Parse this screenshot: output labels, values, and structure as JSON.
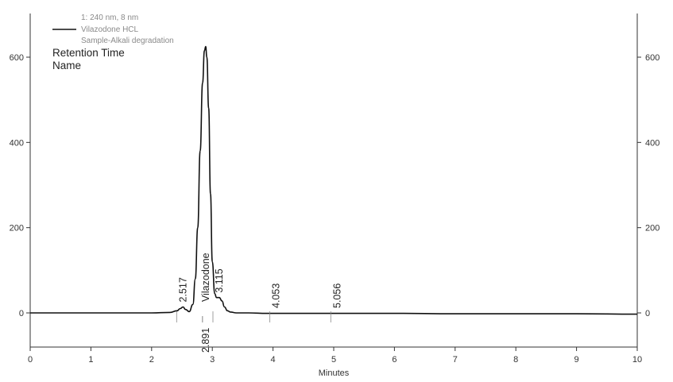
{
  "chart_data": {
    "type": "line",
    "title": "",
    "xlabel": "Minutes",
    "ylabel": "",
    "xlim": [
      0,
      10
    ],
    "ylim": [
      -80,
      700
    ],
    "x_ticks": [
      "0",
      "1",
      "2",
      "3",
      "4",
      "5",
      "6",
      "7",
      "8",
      "9",
      "10"
    ],
    "y_ticks": [
      "0",
      "200",
      "400",
      "600"
    ],
    "y_ticks_right": [
      "0",
      "200",
      "400",
      "600"
    ],
    "grid": false,
    "legend": {
      "position": "top-left",
      "series_line": [
        "1: 240 nm, 8 nm",
        "Vilazodone HCL",
        "Sample-Alkali degradation"
      ],
      "labels": [
        "Retention Time",
        "Name"
      ]
    },
    "series": [
      {
        "name": "Vilazodone HCL",
        "color": "#111111",
        "x": [
          0.0,
          0.5,
          1.0,
          1.5,
          2.0,
          2.3,
          2.42,
          2.47,
          2.517,
          2.56,
          2.62,
          2.68,
          2.72,
          2.76,
          2.8,
          2.84,
          2.87,
          2.891,
          2.91,
          2.94,
          2.97,
          3.0,
          3.04,
          3.07,
          3.115,
          3.16,
          3.2,
          3.25,
          3.3,
          3.4,
          3.6,
          3.9,
          4.5,
          5.0,
          6.0,
          7.0,
          8.0,
          9.0,
          10.0
        ],
        "y": [
          0,
          0,
          0,
          0,
          0,
          1,
          5,
          10,
          14,
          8,
          3,
          20,
          80,
          200,
          380,
          540,
          615,
          625,
          600,
          480,
          280,
          120,
          45,
          36,
          36,
          28,
          14,
          5,
          2,
          0,
          0,
          -1,
          -1,
          -1,
          -1,
          -2,
          -2,
          -2,
          -3
        ]
      }
    ],
    "peak_labels": [
      {
        "rt": "2.517",
        "name": "",
        "x": 2.517,
        "y": 14
      },
      {
        "rt": "2.891",
        "name": "Vilazodone",
        "x": 2.891,
        "y": 625
      },
      {
        "rt": "3.115",
        "name": "",
        "x": 3.115,
        "y": 36
      },
      {
        "rt": "4.053",
        "name": "",
        "x": 4.053,
        "y": 0
      },
      {
        "rt": "5.056",
        "name": "",
        "x": 5.056,
        "y": 0
      }
    ]
  }
}
